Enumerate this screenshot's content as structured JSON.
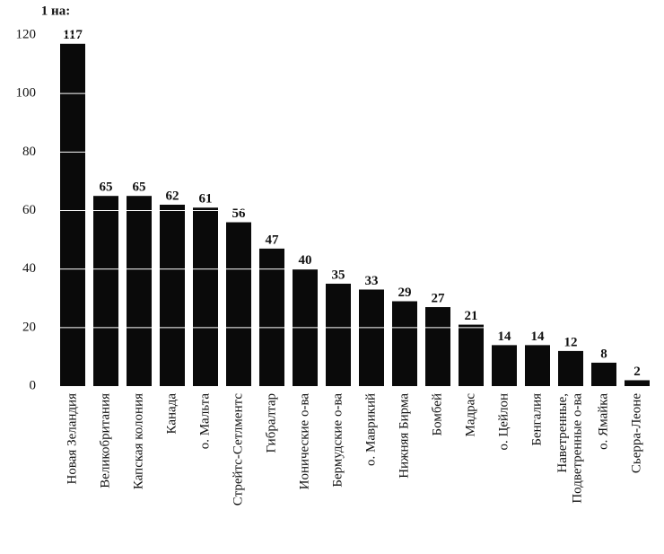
{
  "chart_data": {
    "type": "bar",
    "y_label": "1 на:",
    "categories": [
      "Новая Зеландия",
      "Великобритания",
      "Капская колония",
      "Канада",
      "о. Мальта",
      "Стрейтс-Сетлментс",
      "Гибралтар",
      "Ионические о-ва",
      "Бермудские о-ва",
      "о. Маврикий",
      "Нижняя Бирма",
      "Бомбей",
      "Мадрас",
      "о. Цейлон",
      "Бенгалия",
      "Наветренные,\nПодветренные о-ва",
      "о. Ямайка",
      "Сьерра-Леоне"
    ],
    "values": [
      117,
      65,
      65,
      62,
      61,
      56,
      47,
      40,
      35,
      33,
      29,
      27,
      21,
      14,
      14,
      12,
      8,
      2
    ],
    "color": "#0a0a0a",
    "ylim": [
      0,
      120
    ],
    "yticks": [
      0,
      20,
      40,
      60,
      80,
      100,
      120
    ],
    "grid": true,
    "grid_color": "#ffffff"
  }
}
